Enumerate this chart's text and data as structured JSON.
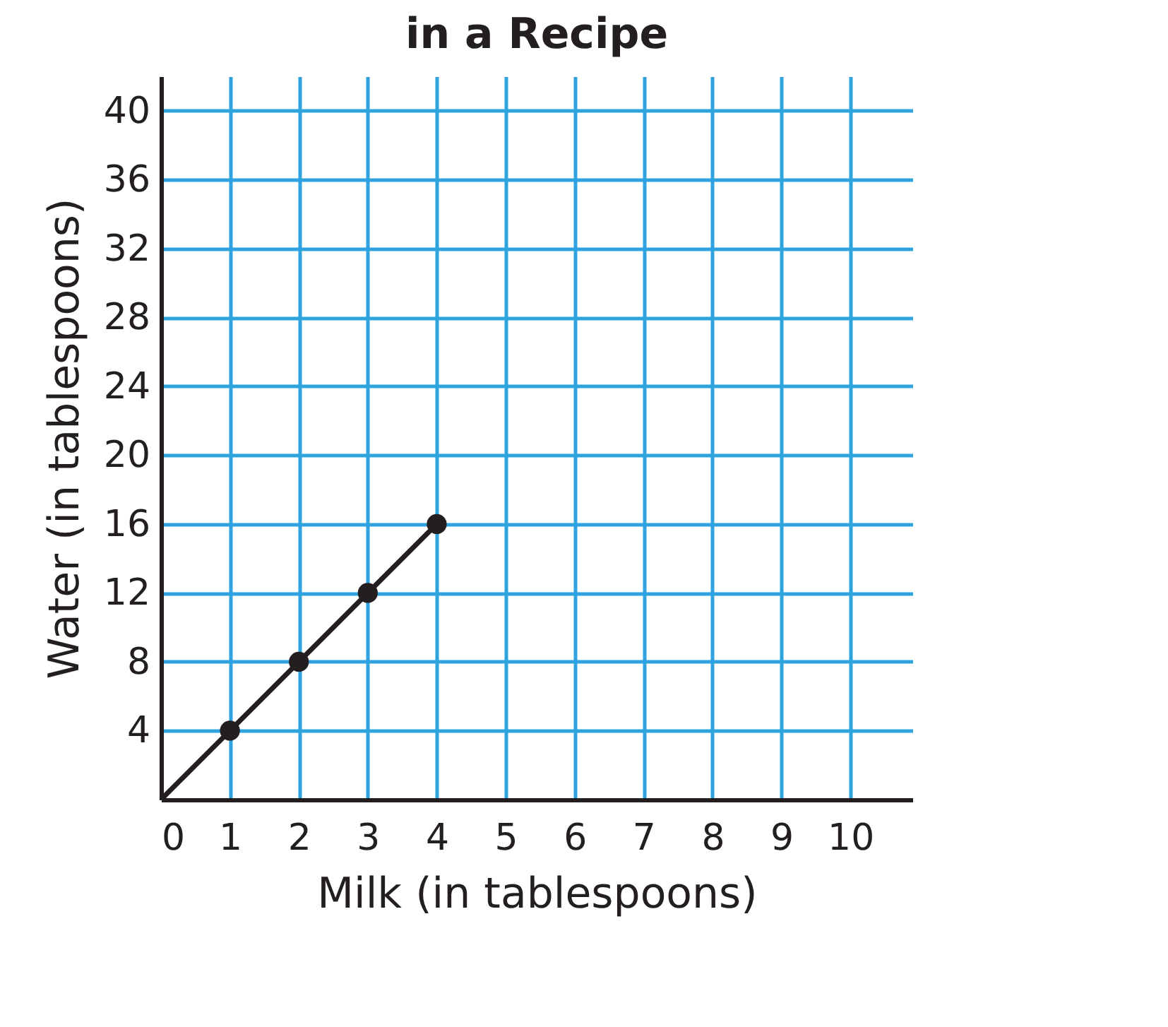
{
  "chart_data": {
    "type": "line",
    "title": "in a Recipe",
    "xlabel": "Milk (in tablespoons)",
    "ylabel": "Water (in tablespoons)",
    "series": [
      {
        "color": "#231f20",
        "x": [
          0,
          1,
          2,
          3,
          4
        ],
        "values": [
          0,
          4,
          8,
          12,
          16
        ],
        "marker": "none"
      },
      {
        "type": "scatter",
        "color": "#231f20",
        "x": [
          1,
          2,
          3,
          4
        ],
        "values": [
          4,
          8,
          12,
          16
        ],
        "marker": "circle"
      }
    ],
    "xlim": [
      0,
      10.9
    ],
    "ylim": [
      0,
      42
    ],
    "xticks": [
      0,
      1,
      2,
      3,
      4,
      5,
      6,
      7,
      8,
      9,
      10
    ],
    "yticks": [
      4,
      8,
      12,
      16,
      20,
      24,
      28,
      32,
      36,
      40
    ],
    "grid": true
  }
}
